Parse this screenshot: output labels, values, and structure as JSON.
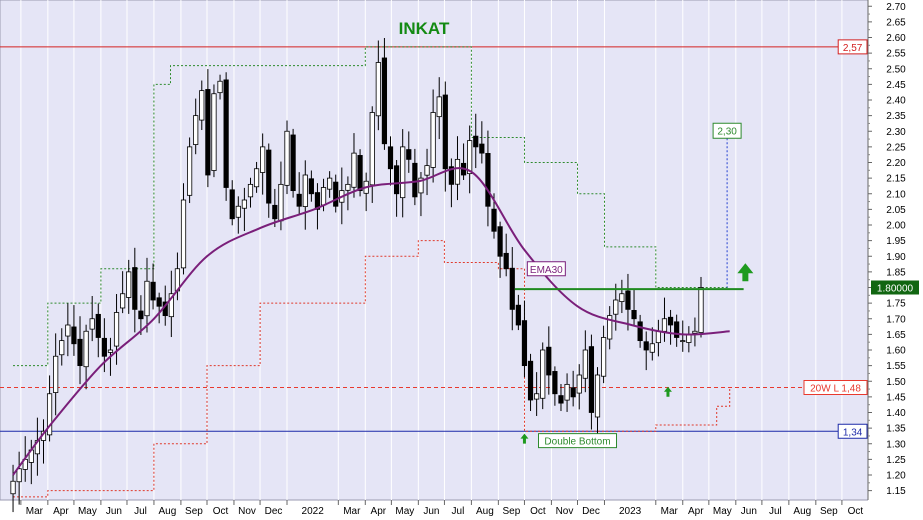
{
  "chart_data": {
    "type": "candlestick",
    "title": "INKAT",
    "xlabel": "",
    "ylabel": "",
    "ylim": [
      1.12,
      2.72
    ],
    "y_ticks": [
      "1.15",
      "1.20",
      "1.25",
      "1.30",
      "1.35",
      "1.40",
      "1.45",
      "1.50",
      "1.55",
      "1.60",
      "1.65",
      "1.70",
      "1.75",
      "1.80",
      "1.85",
      "1.90",
      "1.95",
      "2.00",
      "2.05",
      "2.10",
      "2.15",
      "2.20",
      "2.25",
      "2.30",
      "2.35",
      "2.40",
      "2.45",
      "2.50",
      "2.55",
      "2.60",
      "2.65",
      "2.70"
    ],
    "x_tick_labels": [
      "Mar",
      "Apr",
      "May",
      "Jun",
      "Jul",
      "Aug",
      "Sep",
      "Oct",
      "Nov",
      "Dec",
      "2022",
      "Mar",
      "Apr",
      "May",
      "Jun",
      "Jul",
      "Aug",
      "Sep",
      "Oct",
      "Nov",
      "Dec",
      "2023",
      "Mar",
      "Apr",
      "May",
      "Jun",
      "Jul",
      "Aug",
      "Sep",
      "Oct"
    ],
    "price_label": "1.80000",
    "price_value": 1.8,
    "horizontal_lines": [
      {
        "label": "2,57",
        "value": 2.57,
        "color": "#d42020"
      },
      {
        "label": "20W L 1,48",
        "value": 1.48,
        "color": "#e8392e"
      },
      {
        "label": "1,34",
        "value": 1.34,
        "color": "#1d2aa8"
      }
    ],
    "neckline": {
      "value": 1.795,
      "color": "#1f8a1f"
    },
    "target": {
      "label": "2,30",
      "value": 2.3
    },
    "annotations": {
      "ema": "EMA30",
      "pattern": "Double Bottom"
    },
    "closes": [
      1.18,
      1.22,
      1.25,
      1.28,
      1.31,
      1.34,
      1.46,
      1.58,
      1.63,
      1.68,
      1.62,
      1.55,
      1.66,
      1.7,
      1.64,
      1.58,
      1.6,
      1.72,
      1.78,
      1.85,
      1.73,
      1.7,
      1.82,
      1.76,
      1.74,
      1.71,
      1.78,
      1.86,
      2.08,
      2.25,
      2.35,
      2.43,
      2.16,
      2.42,
      2.46,
      2.12,
      2.02,
      2.06,
      2.08,
      2.13,
      2.18,
      2.25,
      2.07,
      2.02,
      2.13,
      2.3,
      2.11,
      2.06,
      2.16,
      2.1,
      2.05,
      2.12,
      2.15,
      2.06,
      2.11,
      2.13,
      2.23,
      2.11,
      2.14,
      2.36,
      2.52,
      2.26,
      2.18,
      2.1,
      2.25,
      2.21,
      2.09,
      2.15,
      2.19,
      2.36,
      2.41,
      2.18,
      2.13,
      2.21,
      2.16,
      2.27,
      2.25,
      2.23,
      2.06,
      1.98,
      1.9,
      1.86,
      1.73,
      1.68,
      1.55,
      1.44,
      1.46,
      1.6,
      1.52,
      1.46,
      1.43,
      1.49,
      1.45,
      1.52,
      1.6,
      1.4,
      1.52,
      1.64,
      1.71,
      1.76,
      1.78,
      1.73,
      1.7,
      1.63,
      1.6,
      1.62,
      1.66,
      1.7,
      1.68,
      1.64,
      1.63,
      1.65,
      1.66,
      1.8
    ],
    "ema30": [
      {
        "x": "2021-02-20",
        "y": 1.2
      },
      {
        "x": "2021-04-01",
        "y": 1.35
      },
      {
        "x": "2021-06-01",
        "y": 1.55
      },
      {
        "x": "2021-08-01",
        "y": 1.7
      },
      {
        "x": "2021-10-01",
        "y": 1.9
      },
      {
        "x": "2021-12-01",
        "y": 1.99
      },
      {
        "x": "2022-02-01",
        "y": 2.05
      },
      {
        "x": "2022-04-01",
        "y": 2.12
      },
      {
        "x": "2022-06-01",
        "y": 2.14
      },
      {
        "x": "2022-08-01",
        "y": 2.17
      },
      {
        "x": "2022-10-01",
        "y": 1.92
      },
      {
        "x": "2022-12-01",
        "y": 1.74
      },
      {
        "x": "2023-02-01",
        "y": 1.68
      },
      {
        "x": "2023-04-01",
        "y": 1.65
      },
      {
        "x": "2023-05-25",
        "y": 1.66
      }
    ],
    "upper_band": [
      {
        "x": "2021-02-20",
        "y": 1.55
      },
      {
        "x": "2021-04-01",
        "y": 1.75
      },
      {
        "x": "2021-06-01",
        "y": 1.86
      },
      {
        "x": "2021-08-01",
        "y": 2.45
      },
      {
        "x": "2021-08-20",
        "y": 2.51
      },
      {
        "x": "2022-02-01",
        "y": 2.51
      },
      {
        "x": "2022-04-01",
        "y": 2.57
      },
      {
        "x": "2022-06-01",
        "y": 2.57
      },
      {
        "x": "2022-08-01",
        "y": 2.28
      },
      {
        "x": "2022-10-01",
        "y": 2.2
      },
      {
        "x": "2022-12-01",
        "y": 2.1
      },
      {
        "x": "2023-01-01",
        "y": 1.93
      },
      {
        "x": "2023-03-01",
        "y": 1.8
      },
      {
        "x": "2023-05-25",
        "y": 1.8
      }
    ],
    "lower_band": [
      {
        "x": "2021-02-20",
        "y": 1.13
      },
      {
        "x": "2021-04-01",
        "y": 1.15
      },
      {
        "x": "2021-06-01",
        "y": 1.15
      },
      {
        "x": "2021-08-01",
        "y": 1.3
      },
      {
        "x": "2021-10-01",
        "y": 1.55
      },
      {
        "x": "2021-12-01",
        "y": 1.75
      },
      {
        "x": "2022-02-01",
        "y": 1.75
      },
      {
        "x": "2022-04-01",
        "y": 1.9
      },
      {
        "x": "2022-06-01",
        "y": 1.95
      },
      {
        "x": "2022-07-01",
        "y": 1.88
      },
      {
        "x": "2022-09-01",
        "y": 1.86
      },
      {
        "x": "2022-10-01",
        "y": 1.34
      },
      {
        "x": "2023-03-01",
        "y": 1.36
      },
      {
        "x": "2023-05-10",
        "y": 1.42
      },
      {
        "x": "2023-05-25",
        "y": 1.48
      }
    ]
  }
}
